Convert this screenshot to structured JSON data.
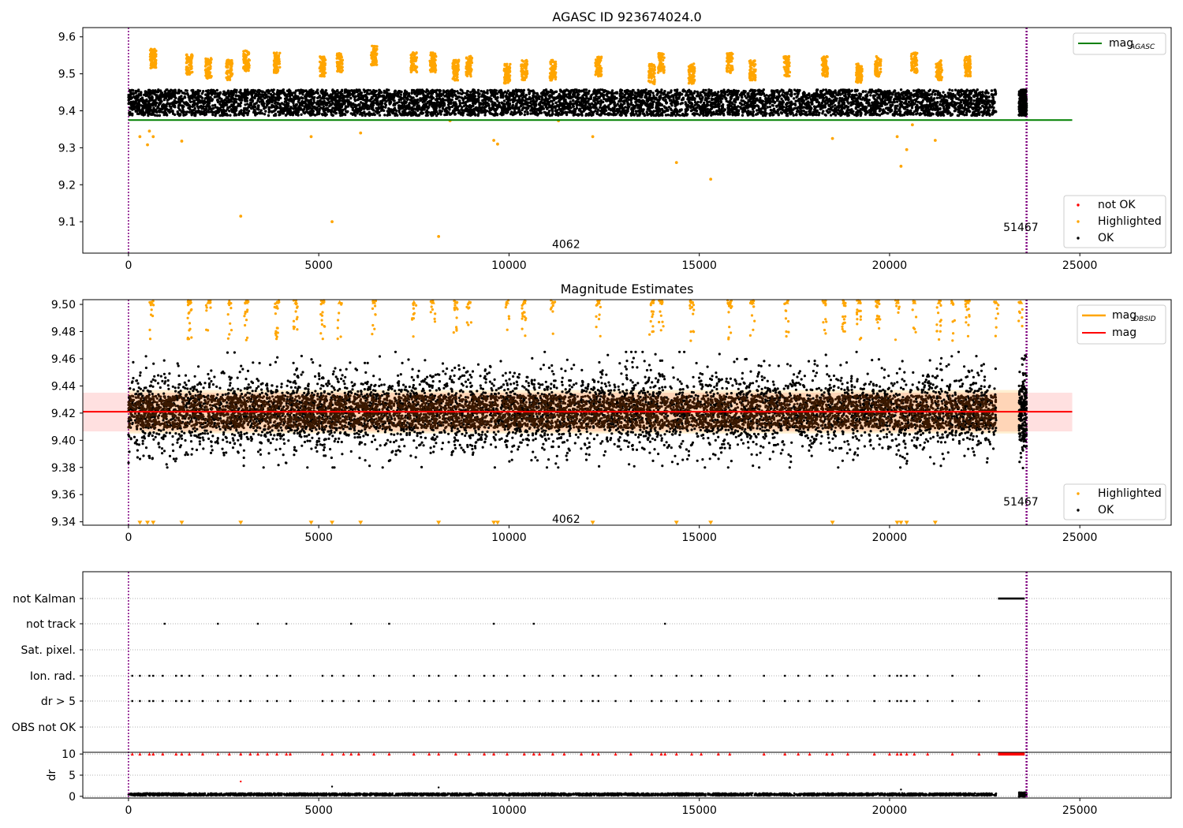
{
  "chart_data": [
    {
      "type": "scatter",
      "title": "AGASC ID 923674024.0",
      "xlim": [
        -1200,
        27400
      ],
      "ylim": [
        9.015,
        9.625
      ],
      "xticks": [
        0,
        5000,
        10000,
        15000,
        20000,
        25000
      ],
      "yticks": [
        9.1,
        9.2,
        9.3,
        9.4,
        9.5,
        9.6
      ],
      "ytick_labels": [
        "9.1",
        "9.2",
        "9.3",
        "9.4",
        "9.5",
        "9.6"
      ],
      "obs_start": 0,
      "obs_end": 23600,
      "ok": {
        "x_range": [
          0,
          22800
        ],
        "y_center": 9.422,
        "y_spread": 0.035,
        "last_x_range": [
          23400,
          23600
        ]
      },
      "highlighted_points": [
        {
          "x": 2950,
          "y": 9.115
        },
        {
          "x": 5350,
          "y": 9.1
        },
        {
          "x": 8150,
          "y": 9.06
        },
        {
          "x": 14400,
          "y": 9.26
        },
        {
          "x": 15300,
          "y": 9.215
        },
        {
          "x": 20300,
          "y": 9.25
        },
        {
          "x": 20450,
          "y": 9.295
        },
        {
          "x": 21200,
          "y": 9.32
        },
        {
          "x": 20200,
          "y": 9.33
        },
        {
          "x": 12200,
          "y": 9.33
        },
        {
          "x": 18500,
          "y": 9.325
        },
        {
          "x": 4800,
          "y": 9.33
        },
        {
          "x": 6100,
          "y": 9.34
        },
        {
          "x": 9600,
          "y": 9.32
        },
        {
          "x": 9700,
          "y": 9.31
        },
        {
          "x": 1400,
          "y": 9.318
        },
        {
          "x": 500,
          "y": 9.308
        },
        {
          "x": 300,
          "y": 9.33
        },
        {
          "x": 650,
          "y": 9.33
        },
        {
          "x": 550,
          "y": 9.345
        },
        {
          "x": 20600,
          "y": 9.362
        },
        {
          "x": 8450,
          "y": 9.373
        },
        {
          "x": 11300,
          "y": 9.373
        }
      ],
      "highlighted_clusters": [
        [
          650,
          9.54
        ],
        [
          1600,
          9.525
        ],
        [
          2100,
          9.515
        ],
        [
          2650,
          9.51
        ],
        [
          3100,
          9.535
        ],
        [
          3900,
          9.53
        ],
        [
          5100,
          9.52
        ],
        [
          5550,
          9.53
        ],
        [
          6450,
          9.55
        ],
        [
          7500,
          9.53
        ],
        [
          8000,
          9.53
        ],
        [
          8600,
          9.51
        ],
        [
          8950,
          9.52
        ],
        [
          9950,
          9.5
        ],
        [
          10400,
          9.51
        ],
        [
          11150,
          9.51
        ],
        [
          12350,
          9.52
        ],
        [
          13750,
          9.5
        ],
        [
          14000,
          9.53
        ],
        [
          14800,
          9.5
        ],
        [
          15800,
          9.53
        ],
        [
          16400,
          9.51
        ],
        [
          17300,
          9.52
        ],
        [
          18300,
          9.52
        ],
        [
          19200,
          9.5
        ],
        [
          19700,
          9.52
        ],
        [
          20650,
          9.53
        ],
        [
          21300,
          9.51
        ],
        [
          22050,
          9.52
        ]
      ],
      "mag_agasc": 9.375,
      "mag_agasc_x_range": [
        0,
        24800
      ],
      "legend_top": {
        "position": "top-right",
        "entries": [
          {
            "label": "mag",
            "sub": "AGASC",
            "color": "#008000"
          }
        ]
      },
      "legend_bottom": {
        "position": "bottom-right",
        "entries": [
          {
            "label": "not OK",
            "color": "#ff0000"
          },
          {
            "label": "Highlighted",
            "color": "#ffa500"
          },
          {
            "label": "OK",
            "color": "#000000"
          }
        ]
      },
      "annotations": [
        {
          "text": "4062",
          "x": 11500,
          "y": 9.04
        },
        {
          "text": "51467",
          "x": 23450,
          "y": 9.085
        }
      ]
    },
    {
      "type": "scatter",
      "title": "Magnitude Estimates",
      "xlim": [
        -1200,
        27400
      ],
      "ylim": [
        9.3375,
        9.5035
      ],
      "xticks": [
        0,
        5000,
        10000,
        15000,
        20000,
        25000
      ],
      "yticks": [
        9.34,
        9.36,
        9.38,
        9.4,
        9.42,
        9.44,
        9.46,
        9.48,
        9.5
      ],
      "ytick_labels": [
        "9.34",
        "9.36",
        "9.38",
        "9.40",
        "9.42",
        "9.44",
        "9.46",
        "9.48",
        "9.50"
      ],
      "obs_start": 0,
      "obs_end": 23600,
      "mag": 9.421,
      "mag_band": [
        9.4065,
        9.435
      ],
      "mag_x_range": [
        -1200,
        24800
      ],
      "mag_obsid_band": [
        9.405,
        9.437
      ],
      "ok": {
        "x_range": [
          0,
          22800
        ],
        "y_center": 9.421,
        "y_spread": 0.012,
        "outlier_spread": 0.045
      },
      "clipped_high_x": [
        600,
        1600,
        2100,
        2650,
        3100,
        3900,
        4400,
        5100,
        5550,
        6450,
        7500,
        8000,
        8600,
        8950,
        9950,
        10400,
        11150,
        12350,
        13750,
        14000,
        14800,
        15800,
        16400,
        17300,
        18300,
        18800,
        19200,
        19700,
        20200,
        20650,
        21300,
        21650,
        22050,
        22800,
        23450
      ],
      "clipped_low_x": [
        300,
        500,
        650,
        1400,
        2950,
        4800,
        5350,
        6100,
        8150,
        9600,
        9700,
        12200,
        14400,
        15300,
        18500,
        20200,
        20300,
        20450,
        21200
      ],
      "legend_top": {
        "position": "top-right",
        "entries": [
          {
            "label": "mag",
            "sub": "OBSID",
            "color": "#ffa500"
          },
          {
            "label": "mag",
            "sub": "",
            "color": "#ff0000"
          }
        ]
      },
      "legend_bottom": {
        "position": "bottom-right",
        "entries": [
          {
            "label": "Highlighted",
            "color": "#ffa500"
          },
          {
            "label": "OK",
            "color": "#000000"
          }
        ]
      },
      "annotations": [
        {
          "text": "4062",
          "x": 11500,
          "y": 9.342
        },
        {
          "text": "51467",
          "x": 23450,
          "y": 9.355
        }
      ]
    },
    {
      "type": "scatter",
      "title": "",
      "xlim": [
        -1200,
        27400
      ],
      "xticks": [
        0,
        5000,
        10000,
        15000,
        20000,
        25000
      ],
      "flag_rows": [
        "not Kalman",
        "not track",
        "Sat. pixel.",
        "Ion. rad.",
        "dr > 5",
        "OBS not OK"
      ],
      "flags": {
        "not Kalman": {
          "ranges": [
            [
              22850,
              23550
            ]
          ]
        },
        "not track": {
          "points": [
            950,
            2350,
            3400,
            4150,
            5850,
            6850,
            9600,
            10650,
            14100
          ]
        },
        "Sat. pixel.": {
          "points": []
        },
        "Ion. rad.": {
          "points": [
            100,
            300,
            550,
            650,
            900,
            1250,
            1400,
            1600,
            1950,
            2350,
            2650,
            2950,
            3200,
            3650,
            3900,
            4250,
            5100,
            5350,
            5650,
            6050,
            6450,
            6850,
            7500,
            7900,
            8150,
            8600,
            8950,
            9350,
            9600,
            9950,
            10400,
            10800,
            11150,
            11450,
            11900,
            12200,
            12350,
            12800,
            13200,
            13750,
            14000,
            14400,
            14800,
            15050,
            15500,
            15800,
            16700,
            17250,
            17600,
            17900,
            18350,
            18500,
            18900,
            19600,
            20000,
            20200,
            20300,
            20450,
            20650,
            21000,
            21650,
            22350
          ]
        },
        "dr > 5": {
          "points": [
            100,
            300,
            550,
            650,
            900,
            1250,
            1400,
            1600,
            1950,
            2350,
            2650,
            2950,
            3200,
            3650,
            3900,
            4250,
            5100,
            5350,
            5650,
            6050,
            6450,
            6850,
            7500,
            7900,
            8150,
            8600,
            8950,
            9350,
            9600,
            9950,
            10400,
            10800,
            11150,
            11450,
            11900,
            12200,
            12350,
            12800,
            13200,
            13750,
            14000,
            14400,
            14800,
            15050,
            15500,
            15800,
            16700,
            17250,
            17600,
            17900,
            18350,
            18500,
            18900,
            19600,
            20000,
            20200,
            20300,
            20450,
            20650,
            21000,
            21650,
            22350
          ]
        },
        "OBS not OK": {
          "points": []
        }
      },
      "dr_ylabel": "dr",
      "dr_ylim": [
        -0.4,
        10.4
      ],
      "dr_yticks": [
        0,
        5,
        10
      ],
      "dr_ytick_labels": [
        "0",
        "5",
        "10"
      ],
      "dr_ok": {
        "x_range": [
          0,
          22800
        ],
        "y_center": 0.45,
        "y_spread": 0.3,
        "last_x_range": [
          23400,
          23600
        ]
      },
      "dr_not_ok_at_10": [
        100,
        300,
        550,
        650,
        900,
        1250,
        1400,
        1600,
        1950,
        2350,
        2650,
        2950,
        3200,
        3400,
        3650,
        3900,
        4150,
        4250,
        5100,
        5350,
        5650,
        5850,
        6050,
        6450,
        6850,
        7500,
        7900,
        8150,
        8600,
        8950,
        9350,
        9600,
        9950,
        10400,
        10650,
        10800,
        11150,
        11450,
        11900,
        12200,
        12350,
        12800,
        13200,
        13750,
        14000,
        14100,
        14400,
        14800,
        15050,
        15500,
        15800,
        16700,
        17250,
        17600,
        17900,
        18350,
        18500,
        18900,
        19600,
        20000,
        20200,
        20300,
        20450,
        20650,
        21000,
        21650,
        22350
      ],
      "dr_not_ok_range_at_10": [
        22850,
        23550
      ],
      "dr_not_ok_points": [
        {
          "x": 2950,
          "y": 3.5
        }
      ],
      "dr_ok_outliers": [
        {
          "x": 5350,
          "y": 2.3
        },
        {
          "x": 8150,
          "y": 2.1
        },
        {
          "x": 20300,
          "y": 1.6
        }
      ]
    }
  ]
}
